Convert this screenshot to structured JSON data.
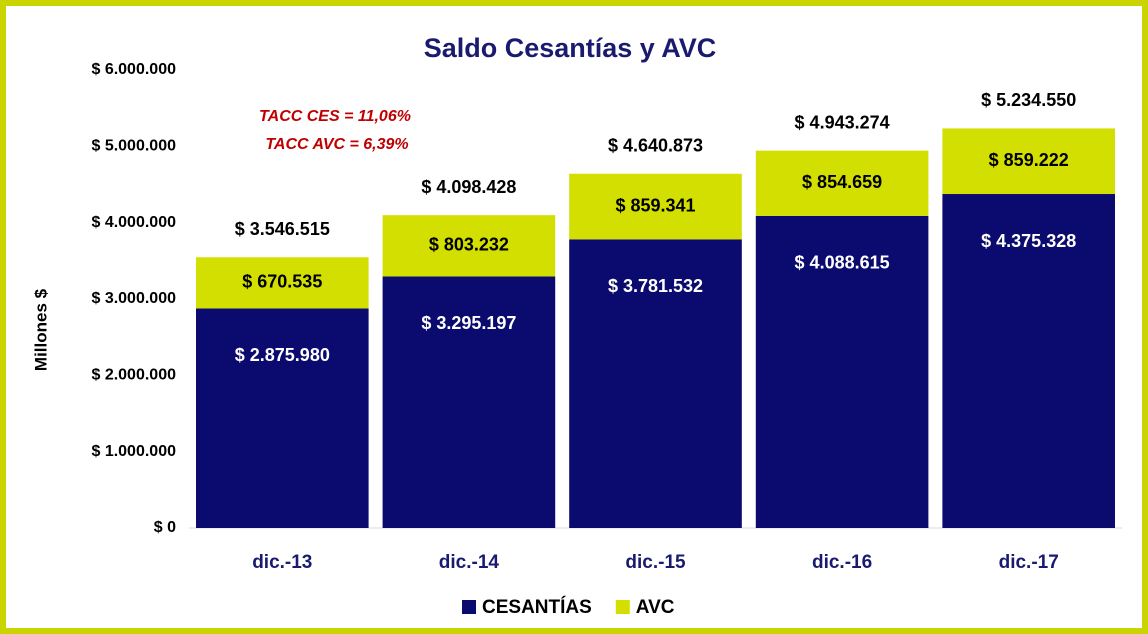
{
  "chart_data": {
    "type": "stacked_bar",
    "title": "Saldo Cesantías y AVC",
    "y_axis_label": "Millones $",
    "categories": [
      "dic.-13",
      "dic.-14",
      "dic.-15",
      "dic.-16",
      "dic.-17"
    ],
    "series": [
      {
        "name": "CESANTÍAS",
        "color": "#0b0b6f",
        "values": [
          2875980,
          3295197,
          3781532,
          4088615,
          4375328
        ],
        "value_labels": [
          "$ 2.875.980",
          "$ 3.295.197",
          "$ 3.781.532",
          "$ 4.088.615",
          "$ 4.375.328"
        ]
      },
      {
        "name": "AVC",
        "color": "#d3df00",
        "values": [
          670535,
          803232,
          859341,
          854659,
          859222
        ],
        "value_labels": [
          "$ 670.535",
          "$ 803.232",
          "$ 859.341",
          "$ 854.659",
          "$ 859.222"
        ]
      }
    ],
    "totals": [
      3546515,
      4098428,
      4640873,
      4943274,
      5234550
    ],
    "total_labels": [
      "$ 3.546.515",
      "$ 4.098.428",
      "$ 4.640.873",
      "$ 4.943.274",
      "$ 5.234.550"
    ],
    "annotations": [
      "TACC CES = 11,06%",
      "TACC AVC = 6,39%"
    ],
    "ylim": [
      0,
      6000000
    ],
    "yticks": [
      {
        "value": 0,
        "label": "$ 0"
      },
      {
        "value": 1000000,
        "label": "$ 1.000.000"
      },
      {
        "value": 2000000,
        "label": "$ 2.000.000"
      },
      {
        "value": 3000000,
        "label": "$ 3.000.000"
      },
      {
        "value": 4000000,
        "label": "$ 4.000.000"
      },
      {
        "value": 5000000,
        "label": "$ 5.000.000"
      },
      {
        "value": 6000000,
        "label": "$ 6.000.000"
      }
    ],
    "legend": "bottom",
    "grid": false
  }
}
